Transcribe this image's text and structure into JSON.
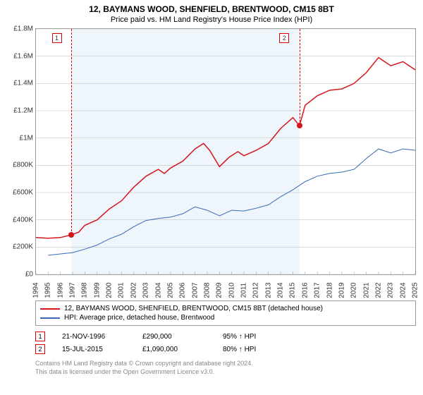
{
  "title": "12, BAYMANS WOOD, SHENFIELD, BRENTWOOD, CM15 8BT",
  "subtitle": "Price paid vs. HM Land Registry's House Price Index (HPI)",
  "chart": {
    "type": "line",
    "background_color": "#ffffff",
    "plot_band_color": "#eef5fb",
    "grid_color": "#bbbbbb",
    "x": {
      "min": 1994,
      "max": 2025,
      "tick_step": 1
    },
    "y": {
      "min": 0,
      "max": 1800000,
      "tick_step": 200000,
      "tick_labels": [
        "£0",
        "£200K",
        "£400K",
        "£600K",
        "£800K",
        "£1M",
        "£1.2M",
        "£1.4M",
        "£1.6M",
        "£1.8M"
      ]
    },
    "plot_band": {
      "from": 1996.9,
      "to": 2015.54
    },
    "series": [
      {
        "name": "12, BAYMANS WOOD, SHENFIELD, BRENTWOOD, CM15 8BT (detached house)",
        "color": "#d4151b",
        "line_width": 1.5,
        "points": [
          [
            1994,
            270000
          ],
          [
            1995,
            265000
          ],
          [
            1996,
            270000
          ],
          [
            1996.9,
            290000
          ],
          [
            1997.5,
            310000
          ],
          [
            1998,
            360000
          ],
          [
            1999,
            400000
          ],
          [
            2000,
            480000
          ],
          [
            2001,
            540000
          ],
          [
            2002,
            640000
          ],
          [
            2003,
            720000
          ],
          [
            2004,
            770000
          ],
          [
            2004.5,
            740000
          ],
          [
            2005,
            780000
          ],
          [
            2006,
            830000
          ],
          [
            2007,
            920000
          ],
          [
            2007.7,
            960000
          ],
          [
            2008.2,
            910000
          ],
          [
            2009,
            790000
          ],
          [
            2009.8,
            860000
          ],
          [
            2010.5,
            900000
          ],
          [
            2011,
            870000
          ],
          [
            2012,
            910000
          ],
          [
            2013,
            960000
          ],
          [
            2014,
            1070000
          ],
          [
            2015,
            1150000
          ],
          [
            2015.54,
            1090000
          ],
          [
            2016,
            1240000
          ],
          [
            2017,
            1310000
          ],
          [
            2018,
            1350000
          ],
          [
            2019,
            1360000
          ],
          [
            2020,
            1400000
          ],
          [
            2021,
            1480000
          ],
          [
            2022,
            1590000
          ],
          [
            2023,
            1530000
          ],
          [
            2024,
            1560000
          ],
          [
            2025,
            1500000
          ]
        ]
      },
      {
        "name": "HPI: Average price, detached house, Brentwood",
        "color": "#3b68b5",
        "line_width": 1,
        "points": [
          [
            1995,
            140000
          ],
          [
            1996,
            150000
          ],
          [
            1997,
            160000
          ],
          [
            1998,
            185000
          ],
          [
            1999,
            215000
          ],
          [
            2000,
            260000
          ],
          [
            2001,
            295000
          ],
          [
            2002,
            350000
          ],
          [
            2003,
            395000
          ],
          [
            2004,
            410000
          ],
          [
            2005,
            420000
          ],
          [
            2006,
            445000
          ],
          [
            2007,
            495000
          ],
          [
            2008,
            470000
          ],
          [
            2009,
            430000
          ],
          [
            2010,
            470000
          ],
          [
            2011,
            465000
          ],
          [
            2012,
            485000
          ],
          [
            2013,
            510000
          ],
          [
            2014,
            570000
          ],
          [
            2015,
            620000
          ],
          [
            2016,
            680000
          ],
          [
            2017,
            720000
          ],
          [
            2018,
            740000
          ],
          [
            2019,
            750000
          ],
          [
            2020,
            770000
          ],
          [
            2021,
            850000
          ],
          [
            2022,
            920000
          ],
          [
            2023,
            890000
          ],
          [
            2024,
            920000
          ],
          [
            2025,
            910000
          ]
        ]
      }
    ],
    "markers": [
      {
        "label": "1",
        "x": 1996.9,
        "y": 290000,
        "box_x": 1995.3
      },
      {
        "label": "2",
        "x": 2015.54,
        "y": 1090000,
        "box_x": 2013.9
      }
    ]
  },
  "legend_items": [
    {
      "color": "#d4151b",
      "text": "12, BAYMANS WOOD, SHENFIELD, BRENTWOOD, CM15 8BT (detached house)"
    },
    {
      "color": "#3b68b5",
      "text": "HPI: Average price, detached house, Brentwood"
    }
  ],
  "transactions": [
    {
      "n": "1",
      "date": "21-NOV-1996",
      "price": "£290,000",
      "ratio": "95% ↑ HPI"
    },
    {
      "n": "2",
      "date": "15-JUL-2015",
      "price": "£1,090,000",
      "ratio": "80% ↑ HPI"
    }
  ],
  "footer1": "Contains HM Land Registry data © Crown copyright and database right 2024.",
  "footer2": "This data is licensed under the Open Government Licence v3.0."
}
